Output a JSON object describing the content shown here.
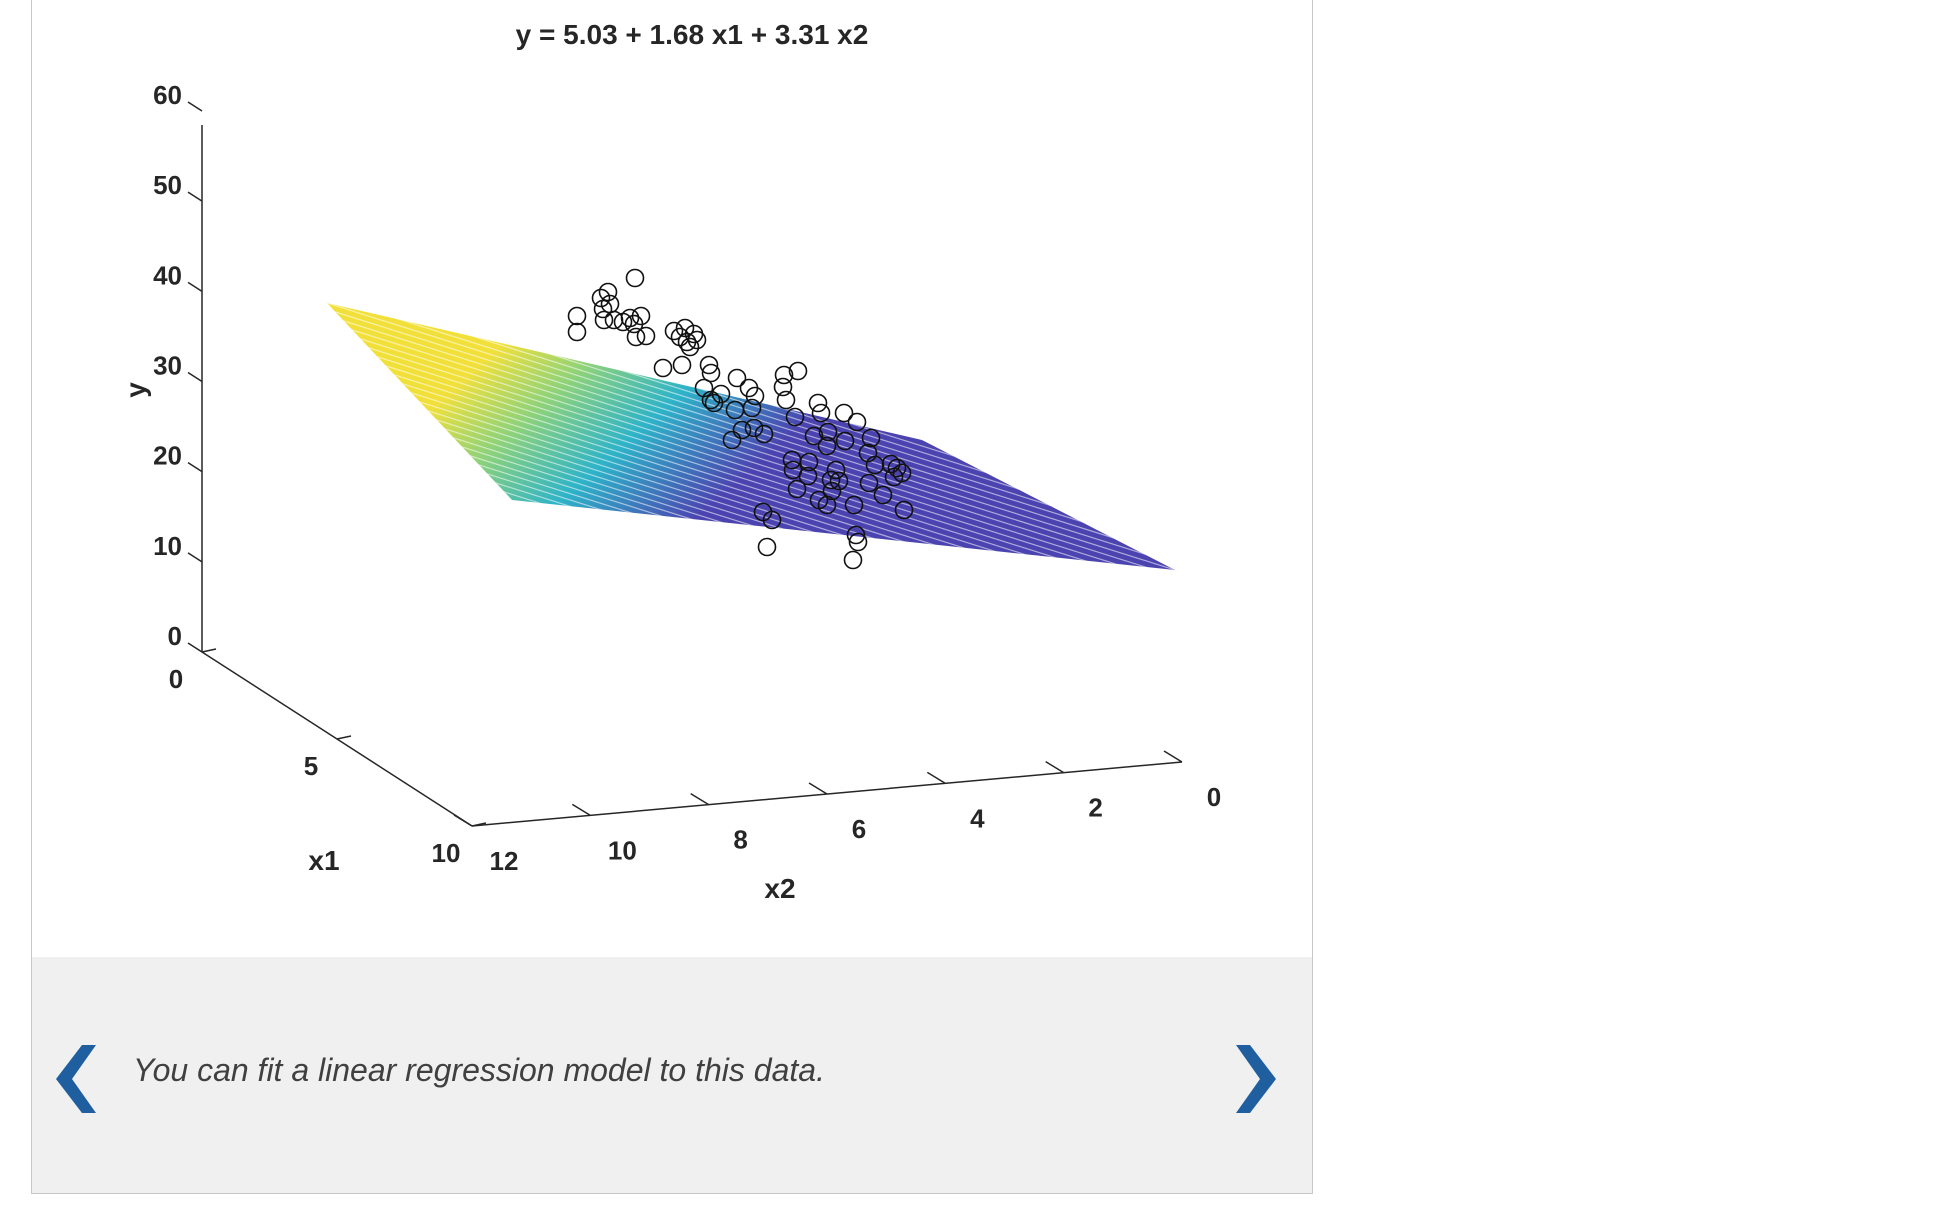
{
  "colors": {
    "accent": "#1f5fa0",
    "footer_bg": "#f0f0f0",
    "panel_border": "#c8c8c8"
  },
  "caption": "You can fit a linear regression model to this data.",
  "nav": {
    "prev_icon": "chevron-left-icon",
    "next_icon": "chevron-right-icon"
  },
  "chart_data": {
    "type": "scatter",
    "title": "y = 5.03 + 1.68 x1 + 3.31 x2",
    "xlabel": "x1",
    "ylabel": "x2",
    "zlabel": "y",
    "x1_ticks": [
      "0",
      "5",
      "10"
    ],
    "x2_ticks": [
      "12",
      "10",
      "8",
      "6",
      "4",
      "2",
      "0"
    ],
    "y_ticks": [
      "60",
      "50",
      "40",
      "30",
      "20",
      "10",
      "0"
    ],
    "x1lim": [
      0,
      10
    ],
    "x2lim": [
      0,
      12
    ],
    "ylim": [
      0,
      60
    ],
    "model": {
      "intercept": 5.03,
      "b_x1": 1.68,
      "b_x2": 3.31
    },
    "surface": "fitted regression plane, colored by height (parula colormap)",
    "grid": false
  }
}
